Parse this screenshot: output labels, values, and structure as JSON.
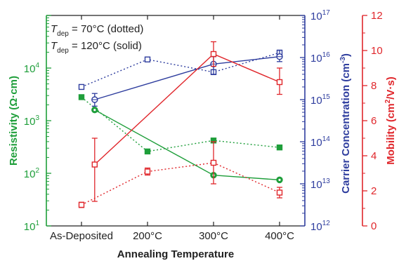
{
  "chart_data": {
    "type": "line",
    "categories": [
      "As-Deposited",
      "200°C",
      "300°C",
      "400°C"
    ],
    "xlabel": "Annealing Temperature",
    "legend_lines": [
      {
        "base": "T",
        "sub": "dep",
        "rest": " = 70°C (dotted)"
      },
      {
        "base": "T",
        "sub": "dep",
        "rest": " = 120°C (solid)"
      }
    ],
    "axes": {
      "left": {
        "label": "Resistivity (Ω·cm)",
        "scale": "log",
        "ylim": [
          10,
          100000
        ],
        "ticks": [
          [
            "10",
            "1"
          ],
          [
            "10",
            "2"
          ],
          [
            "10",
            "3"
          ],
          [
            "10",
            "4"
          ]
        ],
        "color": "#1e9e3a"
      },
      "mid": {
        "label": "Carrier Concentration (cm",
        "label_sup": "-3",
        "label_end": ")",
        "scale": "log",
        "ylim": [
          1000000000000.0,
          1e+17
        ],
        "ticks": [
          [
            "10",
            "12"
          ],
          [
            "10",
            "13"
          ],
          [
            "10",
            "14"
          ],
          [
            "10",
            "15"
          ],
          [
            "10",
            "16"
          ],
          [
            "10",
            "17"
          ]
        ],
        "color": "#2e3d9e"
      },
      "right": {
        "label": "Mobility (cm",
        "label_sup": "2",
        "label_end": "/V·s)",
        "scale": "linear",
        "ylim": [
          0,
          12
        ],
        "ticks": [
          "0",
          "2",
          "4",
          "6",
          "8",
          "10",
          "12"
        ],
        "color": "#e0262b"
      }
    },
    "series": [
      {
        "group": "resistivity",
        "style": "dotted",
        "axis": "left",
        "color": "#1e9e3a",
        "marker": "square-filled",
        "points": [
          {
            "x": 0.0,
            "y": 2800
          },
          {
            "x": 1.0,
            "y": 260
          },
          {
            "x": 2.0,
            "y": 420
          },
          {
            "x": 3.0,
            "y": 310
          }
        ]
      },
      {
        "group": "resistivity",
        "style": "solid",
        "axis": "left",
        "color": "#1e9e3a",
        "marker": "circle-filled",
        "points": [
          {
            "x": 0.2,
            "y": 1600
          },
          {
            "x": 2.0,
            "y": 92
          },
          {
            "x": 3.0,
            "y": 75
          }
        ]
      },
      {
        "group": "concentration",
        "style": "dotted",
        "axis": "mid",
        "color": "#2e3d9e",
        "marker": "square-open",
        "points": [
          {
            "x": 0.0,
            "y": 2000000000000000.0
          },
          {
            "x": 1.0,
            "y": 9000000000000000.0
          },
          {
            "x": 2.0,
            "y": 4500000000000000.0
          },
          {
            "x": 3.0,
            "y": 1.3e+16
          }
        ]
      },
      {
        "group": "concentration",
        "style": "solid",
        "axis": "mid",
        "color": "#2e3d9e",
        "marker": "circle-open",
        "points": [
          {
            "x": 0.2,
            "y": 1000000000000000.0,
            "err": [
              700000000000000.0,
              1400000000000000.0
            ]
          },
          {
            "x": 2.0,
            "y": 7000000000000000.0,
            "err": [
              4000000000000000.0,
              1.05e+16
            ]
          },
          {
            "x": 3.0,
            "y": 1.05e+16,
            "err": [
              8000000000000000.0,
              1.5e+16
            ]
          }
        ]
      },
      {
        "group": "mobility",
        "style": "dotted",
        "axis": "right",
        "color": "#e0262b",
        "marker": "square-open",
        "points": [
          {
            "x": 0.0,
            "y": 1.2,
            "err": [
              1.05,
              1.35
            ]
          },
          {
            "x": 1.0,
            "y": 3.1,
            "err": [
              2.9,
              3.3
            ]
          },
          {
            "x": 2.0,
            "y": 3.6,
            "err": [
              2.4,
              4.8
            ]
          },
          {
            "x": 3.0,
            "y": 1.9,
            "err": [
              1.6,
              2.2
            ]
          }
        ]
      },
      {
        "group": "mobility",
        "style": "solid",
        "axis": "right",
        "color": "#e0262b",
        "marker": "square-open",
        "points": [
          {
            "x": 0.2,
            "y": 3.5,
            "err": [
              1.4,
              5.0
            ]
          },
          {
            "x": 2.0,
            "y": 9.8,
            "err": [
              9.1,
              10.5
            ]
          },
          {
            "x": 3.0,
            "y": 8.2,
            "err": [
              7.5,
              9.0
            ]
          }
        ]
      }
    ]
  }
}
